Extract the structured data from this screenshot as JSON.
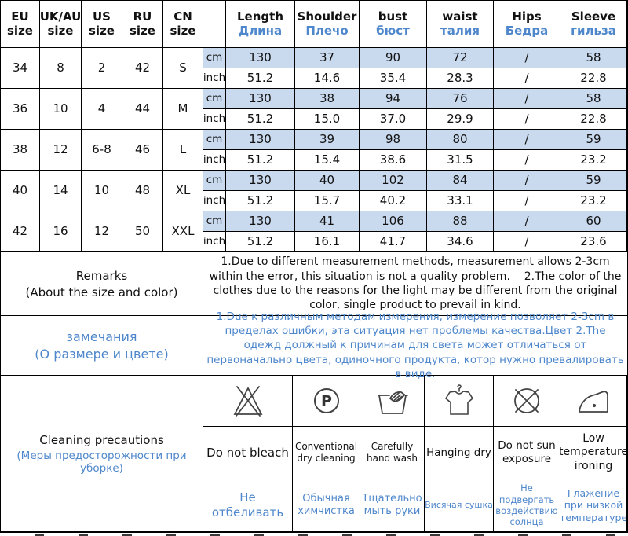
{
  "colors": {
    "accent_blue": "#4e87cb",
    "row_fill_blue": "#c9d9ee",
    "border": "#000000"
  },
  "size_table": {
    "size_headers": [
      "EU size",
      "UK/AU size",
      "US size",
      "RU size",
      "CN size"
    ],
    "measure_headers": [
      {
        "en": "Length",
        "ru": "Длина"
      },
      {
        "en": "Shoulder",
        "ru": "Плечо"
      },
      {
        "en": "bust",
        "ru": "бюст"
      },
      {
        "en": "waist",
        "ru": "талия"
      },
      {
        "en": "Hips",
        "ru": "Бедра"
      },
      {
        "en": "Sleeve",
        "ru": "гильза"
      }
    ],
    "unit_labels": {
      "cm": "cm",
      "inch": "inch"
    },
    "rows": [
      {
        "sizes": [
          "34",
          "8",
          "2",
          "42",
          "S"
        ],
        "cm": [
          "130",
          "37",
          "90",
          "72",
          "/",
          "58"
        ],
        "inch": [
          "51.2",
          "14.6",
          "35.4",
          "28.3",
          "/",
          "22.8"
        ]
      },
      {
        "sizes": [
          "36",
          "10",
          "4",
          "44",
          "M"
        ],
        "cm": [
          "130",
          "38",
          "94",
          "76",
          "/",
          "58"
        ],
        "inch": [
          "51.2",
          "15.0",
          "37.0",
          "29.9",
          "/",
          "22.8"
        ]
      },
      {
        "sizes": [
          "38",
          "12",
          "6-8",
          "46",
          "L"
        ],
        "cm": [
          "130",
          "39",
          "98",
          "80",
          "/",
          "59"
        ],
        "inch": [
          "51.2",
          "15.4",
          "38.6",
          "31.5",
          "/",
          "23.2"
        ]
      },
      {
        "sizes": [
          "40",
          "14",
          "10",
          "48",
          "XL"
        ],
        "cm": [
          "130",
          "40",
          "102",
          "84",
          "/",
          "59"
        ],
        "inch": [
          "51.2",
          "15.7",
          "40.2",
          "33.1",
          "/",
          "23.2"
        ]
      },
      {
        "sizes": [
          "42",
          "16",
          "12",
          "50",
          "XXL"
        ],
        "cm": [
          "130",
          "41",
          "106",
          "88",
          "/",
          "60"
        ],
        "inch": [
          "51.2",
          "16.1",
          "41.7",
          "34.6",
          "/",
          "23.6"
        ]
      }
    ]
  },
  "remarks": {
    "title": "Remarks",
    "subtitle": "(About the size and color)",
    "body": "1.Due to different measurement methods, measurement allows 2-3cm within the error, this situation is not a quality problem.    2.The color of the clothes due to the reasons for the light may be different from the original color, single product to prevail in kind."
  },
  "remarks_ru": {
    "title": "замечания",
    "subtitle": "(О размере и цвете)",
    "body": "1.Due к различным методам измерения, измерение позволяет 2-3cm в пределах ошибки, эта ситуация нет проблемы качества.Цвет 2.The одежд должный к причинам для света может отличаться от первоначально цвета, одиночного продукта, котор нужно превалировать в виде."
  },
  "cleaning": {
    "title": "Cleaning precautions",
    "subtitle": "(Меры предосторожности при уборке)",
    "items": [
      {
        "icon": "do-not-bleach-icon",
        "en": "Do not bleach",
        "ru": "Не отбеливать"
      },
      {
        "icon": "dry-clean-p-icon",
        "en": "Conventional dry cleaning",
        "ru": "Обычная химчистка",
        "icon_letter": "P"
      },
      {
        "icon": "hand-wash-icon",
        "en": "Carefully hand wash",
        "ru": "Тщательно мыть руки"
      },
      {
        "icon": "hanging-dry-icon",
        "en": "Hanging dry",
        "ru": "Висячая сушка"
      },
      {
        "icon": "no-sun-exposure-icon",
        "en": "Do not sun exposure",
        "ru": "Не подвергать воздействию солнца"
      },
      {
        "icon": "low-iron-icon",
        "en": "Low temperature ironing",
        "ru": "Глажение при низкой температуре"
      }
    ]
  }
}
